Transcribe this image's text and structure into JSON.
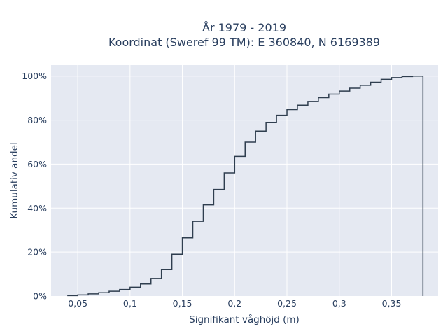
{
  "chart_data": {
    "type": "line",
    "line_shape": "step",
    "title_lines": [
      "År 1979 - 2019",
      "Koordinat (Sweref 99 TM): E 360840, N 6169389"
    ],
    "xlabel": "Signifikant våghöjd (m)",
    "ylabel": "Kumulativ andel",
    "xlim": [
      0.0245,
      0.3945
    ],
    "ylim": [
      0,
      1.05
    ],
    "x_ticks": [
      {
        "value": 0.05,
        "label": "0,05"
      },
      {
        "value": 0.1,
        "label": "0,1"
      },
      {
        "value": 0.15,
        "label": "0,15"
      },
      {
        "value": 0.2,
        "label": "0,2"
      },
      {
        "value": 0.25,
        "label": "0,25"
      },
      {
        "value": 0.3,
        "label": "0,3"
      },
      {
        "value": 0.35,
        "label": "0,35"
      }
    ],
    "y_ticks": [
      {
        "value": 0,
        "label": "0%"
      },
      {
        "value": 0.2,
        "label": "20%"
      },
      {
        "value": 0.4,
        "label": "40%"
      },
      {
        "value": 0.6,
        "label": "60%"
      },
      {
        "value": 0.8,
        "label": "80%"
      },
      {
        "value": 1.0,
        "label": "100%"
      }
    ],
    "grid": true,
    "colors": {
      "line": "#2f3e4f",
      "plot_bg": "#e5e9f2",
      "grid": "#ffffff",
      "text": "#2a3f5f"
    },
    "series": [
      {
        "x": [
          0.04,
          0.05,
          0.06,
          0.07,
          0.08,
          0.09,
          0.1,
          0.11,
          0.12,
          0.13,
          0.14,
          0.15,
          0.16,
          0.17,
          0.18,
          0.19,
          0.2,
          0.21,
          0.22,
          0.23,
          0.24,
          0.25,
          0.26,
          0.27,
          0.28,
          0.29,
          0.3,
          0.31,
          0.32,
          0.33,
          0.34,
          0.35,
          0.36,
          0.37,
          0.38
        ],
        "y": [
          0.002,
          0.005,
          0.01,
          0.015,
          0.022,
          0.03,
          0.04,
          0.055,
          0.08,
          0.12,
          0.19,
          0.265,
          0.34,
          0.415,
          0.485,
          0.56,
          0.635,
          0.7,
          0.75,
          0.79,
          0.822,
          0.848,
          0.868,
          0.885,
          0.902,
          0.918,
          0.932,
          0.945,
          0.958,
          0.972,
          0.985,
          0.993,
          0.998,
          1.0,
          0.0
        ]
      }
    ]
  }
}
